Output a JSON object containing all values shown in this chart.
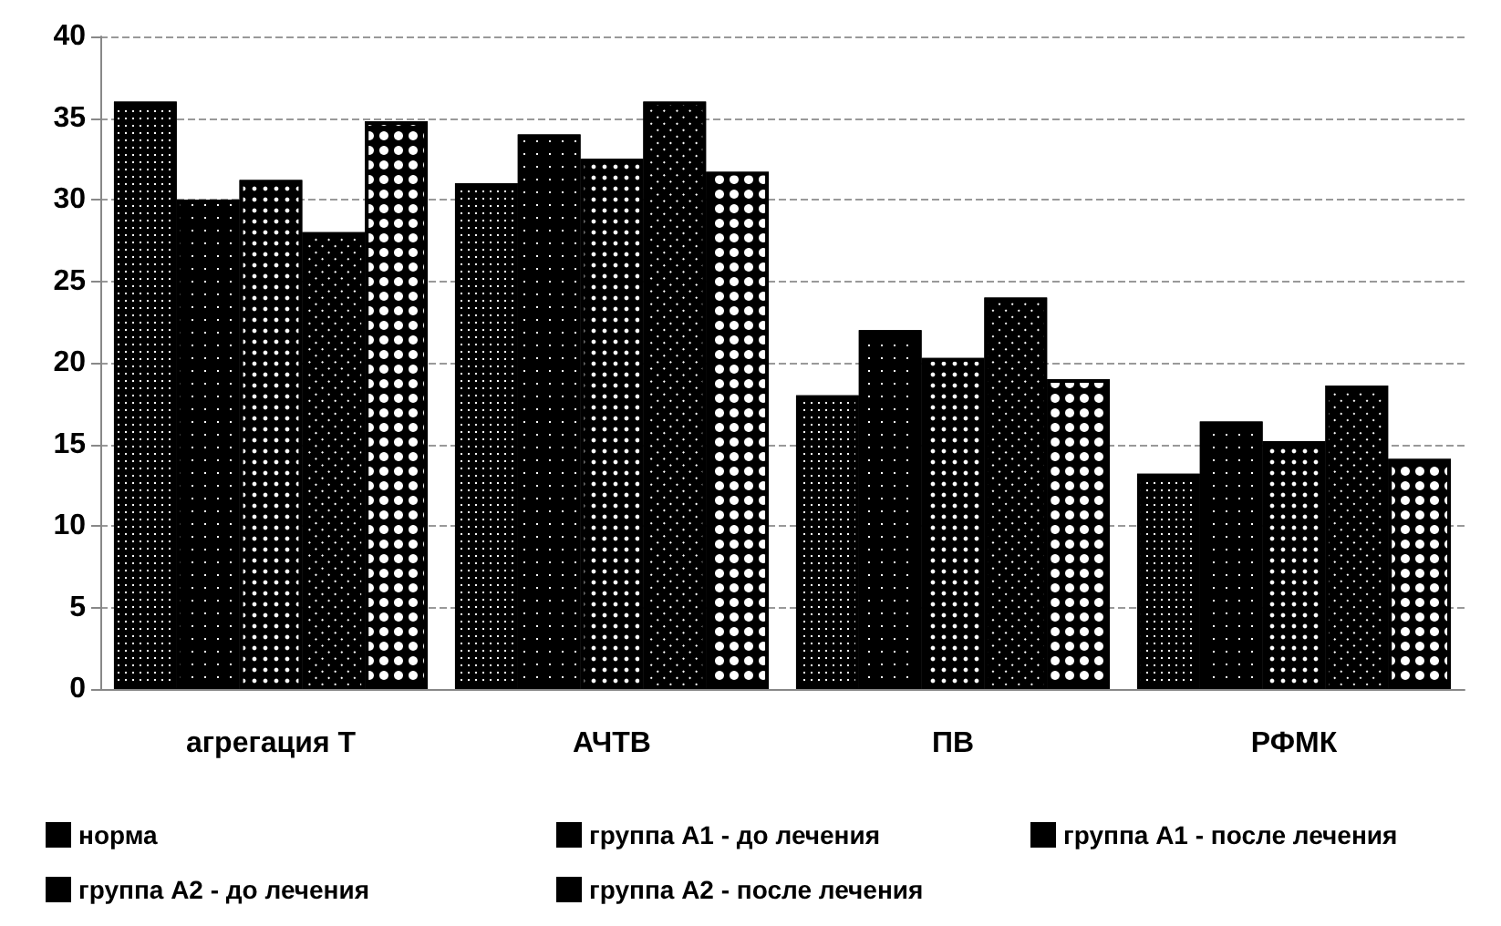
{
  "chart_data": {
    "type": "bar",
    "categories": [
      "агрегация Т",
      "АЧТВ",
      "ПВ",
      "РФМК"
    ],
    "series": [
      {
        "name": "норма",
        "color": "#000000",
        "values": [
          36,
          31,
          18,
          13.2
        ]
      },
      {
        "name": "группа А1 - до лечения",
        "color": "#000000",
        "values": [
          30,
          34,
          22,
          16.4
        ]
      },
      {
        "name": "группа А1 - после лечения",
        "color": "#000000",
        "values": [
          31.2,
          32.5,
          20.3,
          15.2
        ]
      },
      {
        "name": "группа А2 - до лечения",
        "color": "#000000",
        "values": [
          28,
          36,
          24,
          18.6
        ]
      },
      {
        "name": "группа А2 - после лечения",
        "color": "#000000",
        "values": [
          34.8,
          31.7,
          19,
          14.1
        ]
      }
    ],
    "ylim": [
      0,
      40
    ],
    "yticks": [
      0,
      5,
      10,
      15,
      20,
      25,
      30,
      35,
      40
    ],
    "grid": "y",
    "legend": "bottom"
  }
}
